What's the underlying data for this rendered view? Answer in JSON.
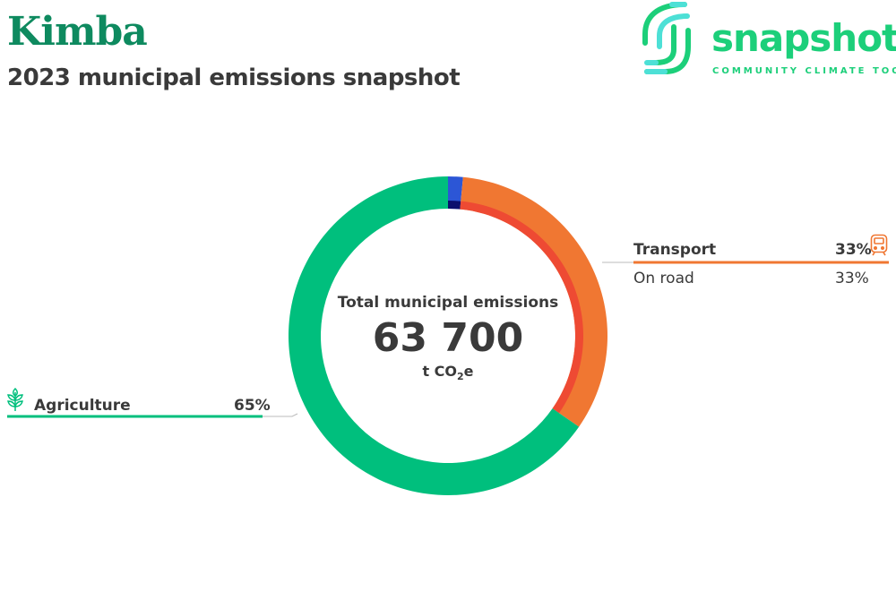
{
  "header": {
    "title": "Kimba",
    "subtitle": "2023 municipal emissions snapshot"
  },
  "logo": {
    "word": "snapshot",
    "tagline": "COMMUNITY CLIMATE TOOL"
  },
  "center": {
    "label": "Total municipal emissions",
    "value": "63 700",
    "unit_prefix": "t CO",
    "unit_sub": "2",
    "unit_suffix": "e"
  },
  "chart_data": {
    "type": "pie",
    "style": "donut",
    "total": 63700,
    "unit": "t CO2e",
    "sectors": [
      {
        "name": "",
        "value": 1.5,
        "color": "#2c56d6",
        "inner": [
          {
            "name": "",
            "value": 1.5,
            "color": "#0b0f6e"
          }
        ]
      },
      {
        "name": "Transport",
        "value": 33,
        "label": "33%",
        "color": "#f07732",
        "icon": "train-icon",
        "inner": [
          {
            "name": "On road",
            "value": 33,
            "label": "33%",
            "color": "#ee4a33"
          }
        ]
      },
      {
        "name": "Agriculture",
        "value": 65,
        "label": "65%",
        "color": "#00bf7d",
        "icon": "wheat-icon",
        "inner": []
      }
    ]
  }
}
